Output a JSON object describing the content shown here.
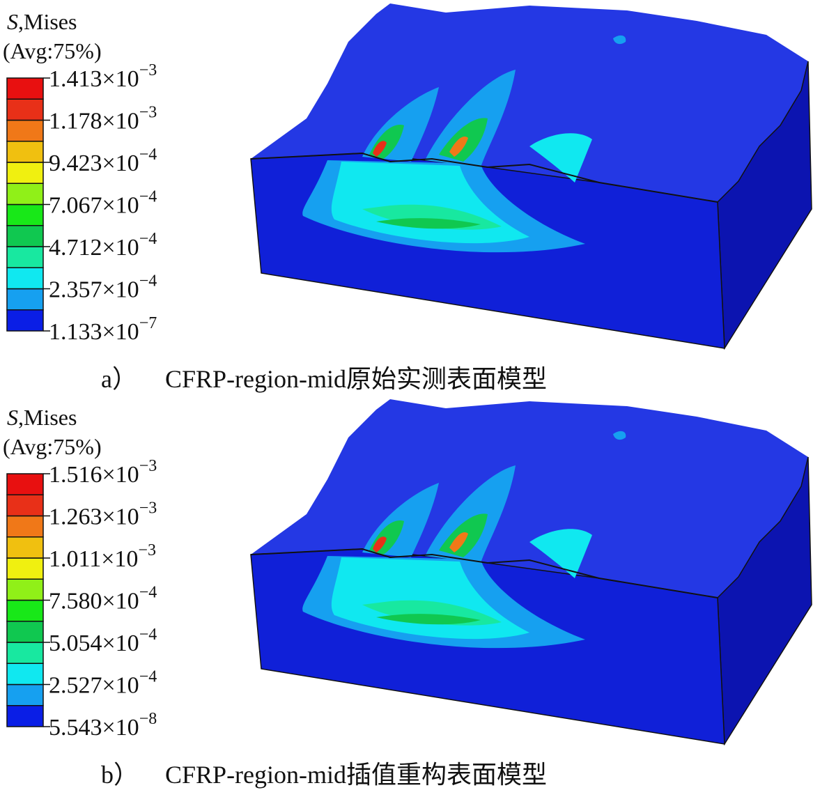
{
  "colors": [
    "#0a1ee6",
    "#16a0f0",
    "#10e8f0",
    "#18e8a0",
    "#10c850",
    "#18e818",
    "#90f018",
    "#f0f010",
    "#f0c010",
    "#f07818",
    "#e83018",
    "#e81010"
  ],
  "panels": [
    {
      "legend_title": {
        "symbol": "S",
        "name": ",Mises"
      },
      "legend_subtitle": "(Avg:75%)",
      "legend_labels": [
        {
          "base": "1.413×10",
          "exp": "−3"
        },
        {
          "base": "1.178×10",
          "exp": "−3"
        },
        {
          "base": "9.423×10",
          "exp": "−4"
        },
        {
          "base": "7.067×10",
          "exp": "−4"
        },
        {
          "base": "4.712×10",
          "exp": "−4"
        },
        {
          "base": "2.357×10",
          "exp": "−4"
        },
        {
          "base": "1.133×10",
          "exp": "−7"
        }
      ],
      "caption": {
        "label": "a）",
        "text": "CFRP-region-mid原始实测表面模型"
      }
    },
    {
      "legend_title": {
        "symbol": "S",
        "name": ",Mises"
      },
      "legend_subtitle": "(Avg:75%)",
      "legend_labels": [
        {
          "base": "1.516×10",
          "exp": "−3"
        },
        {
          "base": "1.263×10",
          "exp": "−3"
        },
        {
          "base": "1.011×10",
          "exp": "−3"
        },
        {
          "base": "7.580×10",
          "exp": "−4"
        },
        {
          "base": "5.054×10",
          "exp": "−4"
        },
        {
          "base": "2.527×10",
          "exp": "−4"
        },
        {
          "base": "5.543×10",
          "exp": "−8"
        }
      ],
      "caption": {
        "label": "b）",
        "text": "CFRP-region-mid插值重构表面模型"
      }
    }
  ]
}
